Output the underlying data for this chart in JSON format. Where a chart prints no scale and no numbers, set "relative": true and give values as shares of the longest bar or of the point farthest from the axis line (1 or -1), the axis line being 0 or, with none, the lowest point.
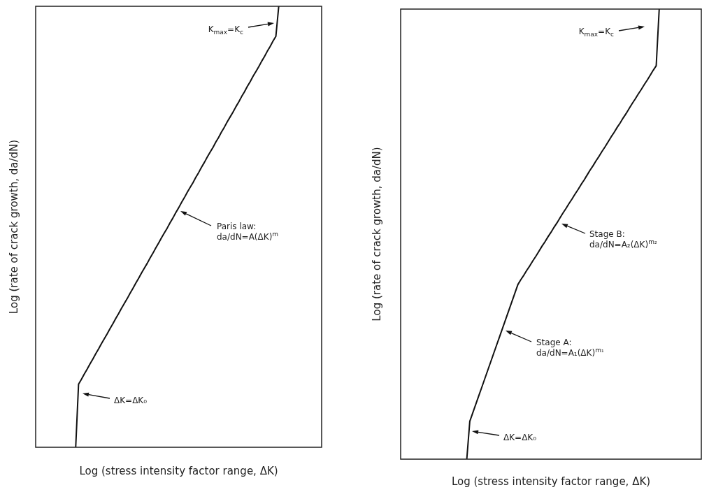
{
  "chart_data": [
    {
      "type": "line",
      "relative": true,
      "color": "#111111",
      "xlabel": "Log (stress intensity factor range, ΔK)",
      "ylabel": "Log (rate of crack growth, da/dN)",
      "categories": [
        null,
        null,
        null,
        null,
        null,
        null,
        null,
        null,
        null,
        null,
        null,
        null,
        null,
        null,
        null,
        null,
        null,
        null,
        null,
        null,
        null,
        null,
        null,
        null,
        null,
        null,
        null,
        null,
        null,
        null,
        null,
        null,
        null,
        null,
        null,
        null,
        null,
        null,
        null,
        null,
        null,
        null,
        null,
        null,
        null,
        null,
        null,
        null,
        null,
        null,
        null,
        null,
        null,
        null,
        null,
        null,
        null,
        null,
        null,
        null,
        null,
        null,
        null,
        null,
        null,
        null,
        null,
        null,
        null,
        null,
        null,
        null,
        null,
        null,
        null,
        null,
        null,
        null,
        null,
        null,
        null,
        null,
        null,
        null,
        null,
        null,
        null,
        null,
        null,
        null,
        null,
        null,
        null,
        null,
        null,
        null,
        null,
        null,
        null,
        null,
        null
      ],
      "values": [
        null,
        null,
        null,
        null,
        null,
        null,
        null,
        null,
        null,
        null,
        null,
        null,
        null,
        null,
        0,
        0.143,
        0.154,
        0.166,
        0.177,
        0.189,
        0.2,
        0.212,
        0.223,
        0.235,
        0.246,
        0.257,
        0.269,
        0.28,
        0.292,
        0.303,
        0.315,
        0.326,
        0.337,
        0.349,
        0.36,
        0.372,
        0.383,
        0.395,
        0.406,
        0.417,
        0.429,
        0.44,
        0.452,
        0.463,
        0.475,
        0.486,
        0.497,
        0.509,
        0.52,
        0.532,
        0.543,
        0.555,
        0.566,
        0.578,
        0.589,
        0.6,
        0.612,
        0.623,
        0.635,
        0.646,
        0.658,
        0.669,
        0.68,
        0.692,
        0.703,
        0.715,
        0.726,
        0.738,
        0.749,
        0.76,
        0.772,
        0.783,
        0.795,
        0.806,
        0.818,
        0.829,
        0.841,
        0.852,
        0.863,
        0.875,
        0.886,
        0.898,
        0.909,
        0.921,
        0.932,
        1,
        null,
        null,
        null,
        null,
        null,
        null,
        null,
        null,
        null,
        null,
        null,
        null,
        null,
        null,
        null
      ],
      "annotations": [
        "K$_{max}$=K$_{c}$",
        "Paris law:\nda/dN=A(ΔK)$^{m}$",
        "ΔK=ΔK₀"
      ]
    },
    {
      "type": "line",
      "relative": true,
      "color": "#111111",
      "xlabel": "Log (stress intensity factor range, ΔK)",
      "ylabel": "Log (rate of crack growth, da/dN)",
      "categories": [
        null,
        null,
        null,
        null,
        null,
        null,
        null,
        null,
        null,
        null,
        null,
        null,
        null,
        null,
        null,
        null,
        null,
        null,
        null,
        null,
        null,
        null,
        null,
        null,
        null,
        null,
        null,
        null,
        null,
        null,
        null,
        null,
        null,
        null,
        null,
        null,
        null,
        null,
        null,
        null,
        null,
        null,
        null,
        null,
        null,
        null,
        null,
        null,
        null,
        null,
        null,
        null,
        null,
        null,
        null,
        null,
        null,
        null,
        null,
        null,
        null,
        null,
        null,
        null,
        null,
        null,
        null,
        null,
        null,
        null,
        null,
        null,
        null,
        null,
        null,
        null,
        null,
        null,
        null,
        null,
        null,
        null,
        null,
        null,
        null,
        null,
        null,
        null,
        null,
        null,
        null,
        null,
        null,
        null,
        null,
        null,
        null,
        null,
        null,
        null,
        null
      ],
      "values": [
        null,
        null,
        null,
        null,
        null,
        null,
        null,
        null,
        null,
        null,
        null,
        null,
        null,
        null,
        null,
        null,
        null,
        null,
        null,
        null,
        null,
        null,
        0,
        0.084,
        0.103,
        0.122,
        0.141,
        0.16,
        0.179,
        0.198,
        0.217,
        0.236,
        0.255,
        0.274,
        0.293,
        0.312,
        0.331,
        0.35,
        0.369,
        0.388,
        0.399,
        0.409,
        0.42,
        0.43,
        0.441,
        0.451,
        0.462,
        0.473,
        0.483,
        0.494,
        0.504,
        0.515,
        0.525,
        0.536,
        0.547,
        0.557,
        0.568,
        0.578,
        0.589,
        0.599,
        0.61,
        0.62,
        0.631,
        0.642,
        0.652,
        0.663,
        0.673,
        0.684,
        0.694,
        0.705,
        0.716,
        0.726,
        0.737,
        0.747,
        0.758,
        0.768,
        0.779,
        0.79,
        0.8,
        0.811,
        0.821,
        0.832,
        0.842,
        0.853,
        0.864,
        0.874,
        1,
        null,
        null,
        null,
        null,
        null,
        null,
        null,
        null,
        null,
        null,
        null,
        null,
        null,
        null
      ],
      "annotations": [
        "K$_{max}$=K$_{c}$",
        "Stage B:\nda/dN=A₂(ΔK)$^{m₂}$",
        "Stage A:\nda/dN=A₁(ΔK)$^{m₁}$",
        "ΔK=ΔK₀"
      ]
    }
  ]
}
